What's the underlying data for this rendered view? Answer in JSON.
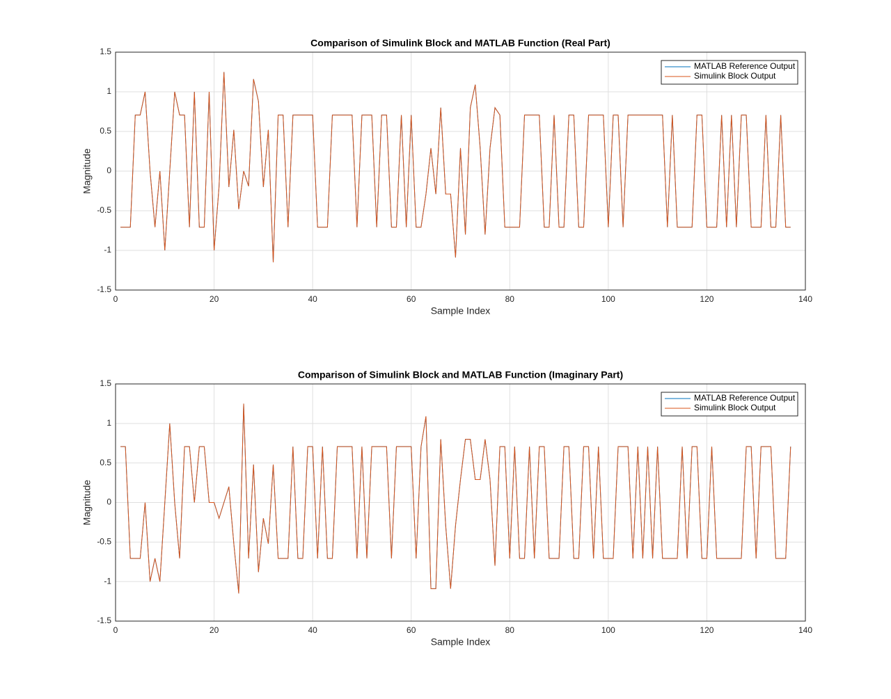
{
  "chart_data": [
    {
      "type": "line",
      "title": "Comparison of Simulink Block and MATLAB Function (Real Part)",
      "x_label": "Sample Index",
      "y_label": "Magnitude",
      "x": [
        1,
        2,
        3,
        4,
        5,
        6,
        7,
        8,
        9,
        10,
        11,
        12,
        13,
        14,
        15,
        16,
        17,
        18,
        19,
        20,
        21,
        22,
        23,
        24,
        25,
        26,
        27,
        28,
        29,
        30,
        31,
        32,
        33,
        34,
        35,
        36,
        37,
        38,
        39,
        40,
        41,
        42,
        43,
        44,
        45,
        46,
        47,
        48,
        49,
        50,
        51,
        52,
        53,
        54,
        55,
        56,
        57,
        58,
        59,
        60,
        61,
        62,
        63,
        64,
        65,
        66,
        67,
        68,
        69,
        70,
        71,
        72,
        73,
        74,
        75,
        76,
        77,
        78,
        79,
        80,
        81,
        82,
        83,
        84,
        85,
        86,
        87,
        88,
        89,
        90,
        91,
        92,
        93,
        94,
        95,
        96,
        97,
        98,
        99,
        100,
        101,
        102,
        103,
        104,
        105,
        106,
        107,
        108,
        109,
        110,
        111,
        112,
        113,
        114,
        115,
        116,
        117,
        118,
        119,
        120,
        121,
        122,
        123,
        124,
        125,
        126,
        127,
        128,
        129,
        130,
        131,
        132,
        133,
        134,
        135,
        136,
        137
      ],
      "series": [
        {
          "name": "MATLAB Reference Output",
          "color": "#0072bd",
          "values": [
            -0.707,
            -0.707,
            -0.707,
            0.707,
            0.707,
            1,
            0,
            -0.707,
            0,
            -1,
            0,
            1,
            0.707,
            0.707,
            -0.707,
            1,
            -0.707,
            -0.707,
            1,
            -1,
            -0.2,
            1.25,
            -0.2,
            0.52,
            -0.48,
            0,
            -0.19,
            1.16,
            0.88,
            -0.2,
            0.52,
            -1.15,
            0.707,
            0.707,
            -0.707,
            0.707,
            0.707,
            0.707,
            0.707,
            0.707,
            -0.707,
            -0.707,
            -0.707,
            0.707,
            0.707,
            0.707,
            0.707,
            0.707,
            -0.707,
            0.707,
            0.707,
            0.707,
            -0.707,
            0.707,
            0.707,
            -0.707,
            -0.707,
            0.707,
            -0.707,
            0.707,
            -0.707,
            -0.707,
            -0.29,
            0.29,
            -0.29,
            0.8,
            -0.29,
            -0.29,
            -1.09,
            0.29,
            -0.8,
            0.8,
            1.09,
            0.29,
            -0.8,
            0.29,
            0.8,
            0.707,
            -0.707,
            -0.707,
            -0.707,
            -0.707,
            0.707,
            0.707,
            0.707,
            0.707,
            -0.707,
            -0.707,
            0.707,
            -0.707,
            -0.707,
            0.707,
            0.707,
            -0.707,
            -0.707,
            0.707,
            0.707,
            0.707,
            0.707,
            -0.707,
            0.707,
            0.707,
            -0.707,
            0.707,
            0.707,
            0.707,
            0.707,
            0.707,
            0.707,
            0.707,
            0.707,
            -0.707,
            0.707,
            -0.707,
            -0.707,
            -0.707,
            -0.707,
            0.707,
            0.707,
            -0.707,
            -0.707,
            -0.707,
            0.707,
            -0.707,
            0.707,
            -0.707,
            0.707,
            0.707,
            -0.707,
            -0.707,
            -0.707,
            0.707,
            -0.707,
            -0.707,
            0.707,
            -0.707,
            -0.707
          ]
        },
        {
          "name": "Simulink Block Output",
          "color": "#d95319",
          "values": [
            -0.707,
            -0.707,
            -0.707,
            0.707,
            0.707,
            1,
            0,
            -0.707,
            0,
            -1,
            0,
            1,
            0.707,
            0.707,
            -0.707,
            1,
            -0.707,
            -0.707,
            1,
            -1,
            -0.2,
            1.25,
            -0.2,
            0.52,
            -0.48,
            0,
            -0.19,
            1.16,
            0.88,
            -0.2,
            0.52,
            -1.15,
            0.707,
            0.707,
            -0.707,
            0.707,
            0.707,
            0.707,
            0.707,
            0.707,
            -0.707,
            -0.707,
            -0.707,
            0.707,
            0.707,
            0.707,
            0.707,
            0.707,
            -0.707,
            0.707,
            0.707,
            0.707,
            -0.707,
            0.707,
            0.707,
            -0.707,
            -0.707,
            0.707,
            -0.707,
            0.707,
            -0.707,
            -0.707,
            -0.29,
            0.29,
            -0.29,
            0.8,
            -0.29,
            -0.29,
            -1.09,
            0.29,
            -0.8,
            0.8,
            1.09,
            0.29,
            -0.8,
            0.29,
            0.8,
            0.707,
            -0.707,
            -0.707,
            -0.707,
            -0.707,
            0.707,
            0.707,
            0.707,
            0.707,
            -0.707,
            -0.707,
            0.707,
            -0.707,
            -0.707,
            0.707,
            0.707,
            -0.707,
            -0.707,
            0.707,
            0.707,
            0.707,
            0.707,
            -0.707,
            0.707,
            0.707,
            -0.707,
            0.707,
            0.707,
            0.707,
            0.707,
            0.707,
            0.707,
            0.707,
            0.707,
            -0.707,
            0.707,
            -0.707,
            -0.707,
            -0.707,
            -0.707,
            0.707,
            0.707,
            -0.707,
            -0.707,
            -0.707,
            0.707,
            -0.707,
            0.707,
            -0.707,
            0.707,
            0.707,
            -0.707,
            -0.707,
            -0.707,
            0.707,
            -0.707,
            -0.707,
            0.707,
            -0.707,
            -0.707
          ]
        }
      ],
      "xlim": [
        0,
        140
      ],
      "xticks": [
        0,
        20,
        40,
        60,
        80,
        100,
        120,
        140
      ],
      "ylim": [
        -1.5,
        1.5
      ],
      "yticks": [
        -1.5,
        -1,
        -0.5,
        0,
        0.5,
        1,
        1.5
      ],
      "grid": true,
      "legend": "upper right"
    },
    {
      "type": "line",
      "title": "Comparison of Simulink Block and MATLAB Function (Imaginary Part)",
      "x_label": "Sample Index",
      "y_label": "Magnitude",
      "x": [
        1,
        2,
        3,
        4,
        5,
        6,
        7,
        8,
        9,
        10,
        11,
        12,
        13,
        14,
        15,
        16,
        17,
        18,
        19,
        20,
        21,
        22,
        23,
        24,
        25,
        26,
        27,
        28,
        29,
        30,
        31,
        32,
        33,
        34,
        35,
        36,
        37,
        38,
        39,
        40,
        41,
        42,
        43,
        44,
        45,
        46,
        47,
        48,
        49,
        50,
        51,
        52,
        53,
        54,
        55,
        56,
        57,
        58,
        59,
        60,
        61,
        62,
        63,
        64,
        65,
        66,
        67,
        68,
        69,
        70,
        71,
        72,
        73,
        74,
        75,
        76,
        77,
        78,
        79,
        80,
        81,
        82,
        83,
        84,
        85,
        86,
        87,
        88,
        89,
        90,
        91,
        92,
        93,
        94,
        95,
        96,
        97,
        98,
        99,
        100,
        101,
        102,
        103,
        104,
        105,
        106,
        107,
        108,
        109,
        110,
        111,
        112,
        113,
        114,
        115,
        116,
        117,
        118,
        119,
        120,
        121,
        122,
        123,
        124,
        125,
        126,
        127,
        128,
        129,
        130,
        131,
        132,
        133,
        134,
        135,
        136,
        137
      ],
      "series": [
        {
          "name": "MATLAB Reference Output",
          "color": "#0072bd",
          "values": [
            0.707,
            0.707,
            -0.707,
            -0.707,
            -0.707,
            0,
            -1,
            -0.707,
            -1,
            0,
            1,
            0,
            -0.707,
            0.707,
            0.707,
            0,
            0.707,
            0.707,
            0,
            0,
            -0.2,
            0,
            0.2,
            -0.52,
            -1.15,
            1.25,
            -0.707,
            0.48,
            -0.88,
            -0.2,
            -0.52,
            0.48,
            -0.707,
            -0.707,
            -0.707,
            0.707,
            -0.707,
            -0.707,
            0.707,
            0.707,
            -0.707,
            0.707,
            -0.707,
            -0.707,
            0.707,
            0.707,
            0.707,
            0.707,
            -0.707,
            0.707,
            -0.707,
            0.707,
            0.707,
            0.707,
            0.707,
            -0.707,
            0.707,
            0.707,
            0.707,
            0.707,
            -0.707,
            0.707,
            1.09,
            -1.09,
            -1.09,
            0.8,
            -0.29,
            -1.09,
            -0.29,
            0.29,
            0.8,
            0.8,
            0.29,
            0.29,
            0.8,
            0.29,
            -0.8,
            0.707,
            0.707,
            -0.707,
            0.707,
            -0.707,
            -0.707,
            0.707,
            -0.707,
            0.707,
            0.707,
            -0.707,
            -0.707,
            -0.707,
            0.707,
            0.707,
            -0.707,
            -0.707,
            0.707,
            0.707,
            -0.707,
            0.707,
            -0.707,
            -0.707,
            -0.707,
            0.707,
            0.707,
            0.707,
            -0.707,
            0.707,
            -0.707,
            0.707,
            -0.707,
            0.707,
            -0.707,
            -0.707,
            -0.707,
            -0.707,
            0.707,
            -0.707,
            0.707,
            0.707,
            -0.707,
            -0.707,
            0.707,
            -0.707,
            -0.707,
            -0.707,
            -0.707,
            -0.707,
            -0.707,
            0.707,
            0.707,
            -0.707,
            0.707,
            0.707,
            0.707,
            -0.707,
            -0.707,
            -0.707,
            0.707
          ]
        },
        {
          "name": "Simulink Block Output",
          "color": "#d95319",
          "values": [
            0.707,
            0.707,
            -0.707,
            -0.707,
            -0.707,
            0,
            -1,
            -0.707,
            -1,
            0,
            1,
            0,
            -0.707,
            0.707,
            0.707,
            0,
            0.707,
            0.707,
            0,
            0,
            -0.2,
            0,
            0.2,
            -0.52,
            -1.15,
            1.25,
            -0.707,
            0.48,
            -0.88,
            -0.2,
            -0.52,
            0.48,
            -0.707,
            -0.707,
            -0.707,
            0.707,
            -0.707,
            -0.707,
            0.707,
            0.707,
            -0.707,
            0.707,
            -0.707,
            -0.707,
            0.707,
            0.707,
            0.707,
            0.707,
            -0.707,
            0.707,
            -0.707,
            0.707,
            0.707,
            0.707,
            0.707,
            -0.707,
            0.707,
            0.707,
            0.707,
            0.707,
            -0.707,
            0.707,
            1.09,
            -1.09,
            -1.09,
            0.8,
            -0.29,
            -1.09,
            -0.29,
            0.29,
            0.8,
            0.8,
            0.29,
            0.29,
            0.8,
            0.29,
            -0.8,
            0.707,
            0.707,
            -0.707,
            0.707,
            -0.707,
            -0.707,
            0.707,
            -0.707,
            0.707,
            0.707,
            -0.707,
            -0.707,
            -0.707,
            0.707,
            0.707,
            -0.707,
            -0.707,
            0.707,
            0.707,
            -0.707,
            0.707,
            -0.707,
            -0.707,
            -0.707,
            0.707,
            0.707,
            0.707,
            -0.707,
            0.707,
            -0.707,
            0.707,
            -0.707,
            0.707,
            -0.707,
            -0.707,
            -0.707,
            -0.707,
            0.707,
            -0.707,
            0.707,
            0.707,
            -0.707,
            -0.707,
            0.707,
            -0.707,
            -0.707,
            -0.707,
            -0.707,
            -0.707,
            -0.707,
            0.707,
            0.707,
            -0.707,
            0.707,
            0.707,
            0.707,
            -0.707,
            -0.707,
            -0.707,
            0.707
          ]
        }
      ],
      "xlim": [
        0,
        140
      ],
      "xticks": [
        0,
        20,
        40,
        60,
        80,
        100,
        120,
        140
      ],
      "ylim": [
        -1.5,
        1.5
      ],
      "yticks": [
        -1.5,
        -1,
        -0.5,
        0,
        0.5,
        1,
        1.5
      ],
      "grid": true,
      "legend": "upper right"
    }
  ]
}
